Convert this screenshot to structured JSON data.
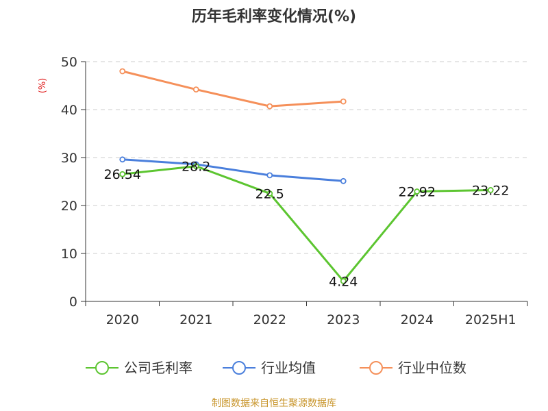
{
  "chart_data": {
    "type": "line",
    "title": "历年毛利率变化情况(%)",
    "ylabel": "(%)",
    "xlabel": "",
    "categories": [
      "2020",
      "2021",
      "2022",
      "2023",
      "2024",
      "2025H1"
    ],
    "ylim": [
      0,
      50
    ],
    "yticks": [
      0,
      10,
      20,
      30,
      40,
      50
    ],
    "grid": "horizontal dashed",
    "legend_position": "bottom",
    "series": [
      {
        "name": "公司毛利率",
        "color": "#5cc530",
        "values": [
          26.54,
          28.2,
          22.5,
          4.24,
          22.92,
          23.22
        ],
        "labels": [
          "26.54",
          "28.2",
          "22.5",
          "4.24",
          "22.92",
          "23.22"
        ]
      },
      {
        "name": "行业均值",
        "color": "#4a7fdc",
        "values": [
          29.6,
          28.6,
          26.3,
          25.1,
          null,
          null
        ]
      },
      {
        "name": "行业中位数",
        "color": "#f5905a",
        "values": [
          48.0,
          44.2,
          40.7,
          41.7,
          null,
          null
        ]
      }
    ],
    "source": "制图数据来自恒生聚源数据库"
  }
}
